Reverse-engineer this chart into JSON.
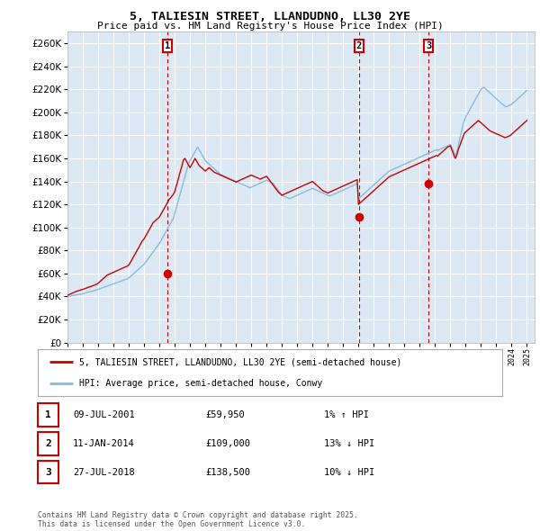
{
  "title": "5, TALIESIN STREET, LLANDUDNO, LL30 2YE",
  "subtitle": "Price paid vs. HM Land Registry's House Price Index (HPI)",
  "ylabel_ticks": [
    0,
    20000,
    40000,
    60000,
    80000,
    100000,
    120000,
    140000,
    160000,
    180000,
    200000,
    220000,
    240000,
    260000
  ],
  "ylim": [
    0,
    270000
  ],
  "xlim_start": 1995.0,
  "xlim_end": 2025.5,
  "fig_bg_color": "#ffffff",
  "plot_bg_color": "#dce9f5",
  "grid_color": "#ffffff",
  "red_line_color": "#cc0000",
  "blue_line_color": "#88bbdd",
  "sale_marker_color": "#cc0000",
  "vline_color": "#cc0000",
  "transactions": [
    {
      "label": "1",
      "date_num": 2001.52,
      "price": 59950
    },
    {
      "label": "2",
      "date_num": 2014.03,
      "price": 109000
    },
    {
      "label": "3",
      "date_num": 2018.57,
      "price": 138500
    }
  ],
  "legend_entries": [
    "5, TALIESIN STREET, LLANDUDNO, LL30 2YE (semi-detached house)",
    "HPI: Average price, semi-detached house, Conwy"
  ],
  "table_rows": [
    {
      "num": "1",
      "date": "09-JUL-2001",
      "price": "£59,950",
      "hpi": "1% ↑ HPI"
    },
    {
      "num": "2",
      "date": "11-JAN-2014",
      "price": "£109,000",
      "hpi": "13% ↓ HPI"
    },
    {
      "num": "3",
      "date": "27-JUL-2018",
      "price": "£138,500",
      "hpi": "10% ↓ HPI"
    }
  ],
  "footnote": "Contains HM Land Registry data © Crown copyright and database right 2025.\nThis data is licensed under the Open Government Licence v3.0.",
  "hpi_years": [
    1995.0,
    1995.08,
    1995.17,
    1995.25,
    1995.33,
    1995.42,
    1995.5,
    1995.58,
    1995.67,
    1995.75,
    1995.83,
    1995.92,
    1996.0,
    1996.08,
    1996.17,
    1996.25,
    1996.33,
    1996.42,
    1996.5,
    1996.58,
    1996.67,
    1996.75,
    1996.83,
    1996.92,
    1997.0,
    1997.08,
    1997.17,
    1997.25,
    1997.33,
    1997.42,
    1997.5,
    1997.58,
    1997.67,
    1997.75,
    1997.83,
    1997.92,
    1998.0,
    1998.08,
    1998.17,
    1998.25,
    1998.33,
    1998.42,
    1998.5,
    1998.58,
    1998.67,
    1998.75,
    1998.83,
    1998.92,
    1999.0,
    1999.08,
    1999.17,
    1999.25,
    1999.33,
    1999.42,
    1999.5,
    1999.58,
    1999.67,
    1999.75,
    1999.83,
    1999.92,
    2000.0,
    2000.08,
    2000.17,
    2000.25,
    2000.33,
    2000.42,
    2000.5,
    2000.58,
    2000.67,
    2000.75,
    2000.83,
    2000.92,
    2001.0,
    2001.08,
    2001.17,
    2001.25,
    2001.33,
    2001.42,
    2001.5,
    2001.58,
    2001.67,
    2001.75,
    2001.83,
    2001.92,
    2002.0,
    2002.08,
    2002.17,
    2002.25,
    2002.33,
    2002.42,
    2002.5,
    2002.58,
    2002.67,
    2002.75,
    2002.83,
    2002.92,
    2003.0,
    2003.08,
    2003.17,
    2003.25,
    2003.33,
    2003.42,
    2003.5,
    2003.58,
    2003.67,
    2003.75,
    2003.83,
    2003.92,
    2004.0,
    2004.08,
    2004.17,
    2004.25,
    2004.33,
    2004.42,
    2004.5,
    2004.58,
    2004.67,
    2004.75,
    2004.83,
    2004.92,
    2005.0,
    2005.08,
    2005.17,
    2005.25,
    2005.33,
    2005.42,
    2005.5,
    2005.58,
    2005.67,
    2005.75,
    2005.83,
    2005.92,
    2006.0,
    2006.08,
    2006.17,
    2006.25,
    2006.33,
    2006.42,
    2006.5,
    2006.58,
    2006.67,
    2006.75,
    2006.83,
    2006.92,
    2007.0,
    2007.08,
    2007.17,
    2007.25,
    2007.33,
    2007.42,
    2007.5,
    2007.58,
    2007.67,
    2007.75,
    2007.83,
    2007.92,
    2008.0,
    2008.08,
    2008.17,
    2008.25,
    2008.33,
    2008.42,
    2008.5,
    2008.58,
    2008.67,
    2008.75,
    2008.83,
    2008.92,
    2009.0,
    2009.08,
    2009.17,
    2009.25,
    2009.33,
    2009.42,
    2009.5,
    2009.58,
    2009.67,
    2009.75,
    2009.83,
    2009.92,
    2010.0,
    2010.08,
    2010.17,
    2010.25,
    2010.33,
    2010.42,
    2010.5,
    2010.58,
    2010.67,
    2010.75,
    2010.83,
    2010.92,
    2011.0,
    2011.08,
    2011.17,
    2011.25,
    2011.33,
    2011.42,
    2011.5,
    2011.58,
    2011.67,
    2011.75,
    2011.83,
    2011.92,
    2012.0,
    2012.08,
    2012.17,
    2012.25,
    2012.33,
    2012.42,
    2012.5,
    2012.58,
    2012.67,
    2012.75,
    2012.83,
    2012.92,
    2013.0,
    2013.08,
    2013.17,
    2013.25,
    2013.33,
    2013.42,
    2013.5,
    2013.58,
    2013.67,
    2013.75,
    2013.83,
    2013.92,
    2014.0,
    2014.08,
    2014.17,
    2014.25,
    2014.33,
    2014.42,
    2014.5,
    2014.58,
    2014.67,
    2014.75,
    2014.83,
    2014.92,
    2015.0,
    2015.08,
    2015.17,
    2015.25,
    2015.33,
    2015.42,
    2015.5,
    2015.58,
    2015.67,
    2015.75,
    2015.83,
    2015.92,
    2016.0,
    2016.08,
    2016.17,
    2016.25,
    2016.33,
    2016.42,
    2016.5,
    2016.58,
    2016.67,
    2016.75,
    2016.83,
    2016.92,
    2017.0,
    2017.08,
    2017.17,
    2017.25,
    2017.33,
    2017.42,
    2017.5,
    2017.58,
    2017.67,
    2017.75,
    2017.83,
    2017.92,
    2018.0,
    2018.08,
    2018.17,
    2018.25,
    2018.33,
    2018.42,
    2018.5,
    2018.58,
    2018.67,
    2018.75,
    2018.83,
    2018.92,
    2019.0,
    2019.08,
    2019.17,
    2019.25,
    2019.33,
    2019.42,
    2019.5,
    2019.58,
    2019.67,
    2019.75,
    2019.83,
    2019.92,
    2020.0,
    2020.08,
    2020.17,
    2020.25,
    2020.33,
    2020.42,
    2020.5,
    2020.58,
    2020.67,
    2020.75,
    2020.83,
    2020.92,
    2021.0,
    2021.08,
    2021.17,
    2021.25,
    2021.33,
    2021.42,
    2021.5,
    2021.58,
    2021.67,
    2021.75,
    2021.83,
    2021.92,
    2022.0,
    2022.08,
    2022.17,
    2022.25,
    2022.33,
    2022.42,
    2022.5,
    2022.58,
    2022.67,
    2022.75,
    2022.83,
    2022.92,
    2023.0,
    2023.08,
    2023.17,
    2023.25,
    2023.33,
    2023.42,
    2023.5,
    2023.58,
    2023.67,
    2023.75,
    2023.83,
    2023.92,
    2024.0,
    2024.08,
    2024.17,
    2024.25,
    2024.33,
    2024.42,
    2024.5,
    2024.58,
    2024.67,
    2024.75,
    2024.83,
    2024.92,
    2025.0
  ],
  "hpi_values": [
    40000,
    40200,
    40400,
    40600,
    40800,
    41000,
    41200,
    41400,
    41600,
    41800,
    42000,
    42200,
    42500,
    42800,
    43100,
    43400,
    43700,
    44000,
    44300,
    44600,
    44900,
    45200,
    45500,
    45800,
    46200,
    46600,
    47000,
    47400,
    47800,
    48200,
    48600,
    49000,
    49400,
    49800,
    50200,
    50600,
    51000,
    51400,
    51800,
    52200,
    52600,
    53000,
    53400,
    53800,
    54200,
    54600,
    55000,
    55400,
    56000,
    57000,
    58000,
    59000,
    60000,
    61000,
    62000,
    63000,
    64000,
    65000,
    66000,
    67000,
    68000,
    69500,
    71000,
    72500,
    74000,
    75500,
    77000,
    78500,
    80000,
    81500,
    83000,
    84500,
    86000,
    88000,
    90000,
    92000,
    94000,
    96000,
    98000,
    100000,
    102000,
    104000,
    106000,
    108000,
    112000,
    116000,
    120000,
    124000,
    128000,
    132000,
    136000,
    140000,
    144000,
    148000,
    152000,
    156000,
    158000,
    160000,
    162000,
    164000,
    166000,
    168000,
    170000,
    168000,
    166000,
    164000,
    162000,
    160000,
    158000,
    157000,
    156000,
    155000,
    154000,
    153000,
    152000,
    151000,
    150000,
    149000,
    148000,
    147000,
    146000,
    145500,
    145000,
    144500,
    144000,
    143500,
    143000,
    142500,
    142000,
    141500,
    141000,
    140500,
    140000,
    139500,
    139000,
    138500,
    138000,
    137500,
    137000,
    136500,
    136000,
    135500,
    135000,
    134500,
    135000,
    135500,
    136000,
    136500,
    137000,
    137500,
    138000,
    138500,
    139000,
    139500,
    140000,
    140500,
    141000,
    140500,
    140000,
    139500,
    139000,
    138500,
    137000,
    135500,
    134000,
    132500,
    131000,
    129500,
    128000,
    127500,
    127000,
    126500,
    126000,
    125500,
    125000,
    125500,
    126000,
    126500,
    127000,
    127500,
    128000,
    128500,
    129000,
    129500,
    130000,
    130500,
    131000,
    131500,
    132000,
    132500,
    133000,
    133500,
    134000,
    133500,
    133000,
    132500,
    132000,
    131500,
    131000,
    130500,
    130000,
    129500,
    129000,
    128500,
    128000,
    127500,
    127500,
    128000,
    128500,
    129000,
    129500,
    130000,
    130500,
    131000,
    131500,
    132000,
    132500,
    133000,
    133500,
    134000,
    134500,
    135000,
    135500,
    136000,
    136500,
    137000,
    137500,
    138000,
    125000,
    126000,
    127000,
    128000,
    129000,
    130000,
    131000,
    132000,
    133000,
    134000,
    135000,
    136000,
    137000,
    138000,
    139000,
    140000,
    141000,
    142000,
    143000,
    144000,
    145000,
    146000,
    147000,
    148000,
    149000,
    149500,
    150000,
    150500,
    151000,
    151500,
    152000,
    152500,
    153000,
    153500,
    154000,
    154500,
    155000,
    155500,
    156000,
    156500,
    157000,
    157500,
    158000,
    158500,
    159000,
    159500,
    160000,
    160500,
    161000,
    161500,
    162000,
    162500,
    163000,
    163500,
    164000,
    164500,
    165000,
    165500,
    166000,
    166500,
    167000,
    167500,
    167000,
    167500,
    168000,
    168500,
    169000,
    169500,
    170000,
    170500,
    171000,
    171500,
    172000,
    170000,
    168000,
    165000,
    162000,
    165000,
    170000,
    175000,
    180000,
    185000,
    190000,
    193000,
    196000,
    198000,
    200000,
    202000,
    204000,
    206000,
    208000,
    210000,
    212000,
    214000,
    216000,
    218000,
    220000,
    221000,
    222000,
    221000,
    220000,
    219000,
    218000,
    217000,
    216000,
    215000,
    214000,
    213000,
    212000,
    211000,
    210000,
    209000,
    208000,
    207000,
    206000,
    205000,
    205000,
    205500,
    206000,
    206500,
    207000,
    208000,
    209000,
    210000,
    211000,
    212000,
    213000,
    214000,
    215000,
    216000,
    217000,
    218000,
    219000,
    220000,
    221000,
    222000,
    223000,
    224000,
    225000,
    226000,
    227000,
    226000,
    225000,
    224000,
    223000
  ],
  "pp_years": [
    1995.0,
    1995.08,
    1995.17,
    1995.25,
    1995.33,
    1995.42,
    1995.5,
    1995.58,
    1995.67,
    1995.75,
    1995.83,
    1995.92,
    1996.0,
    1996.08,
    1996.17,
    1996.25,
    1996.33,
    1996.42,
    1996.5,
    1996.58,
    1996.67,
    1996.75,
    1996.83,
    1996.92,
    1997.0,
    1997.08,
    1997.17,
    1997.25,
    1997.33,
    1997.42,
    1997.5,
    1997.58,
    1997.67,
    1997.75,
    1997.83,
    1997.92,
    1998.0,
    1998.08,
    1998.17,
    1998.25,
    1998.33,
    1998.42,
    1998.5,
    1998.58,
    1998.67,
    1998.75,
    1998.83,
    1998.92,
    1999.0,
    1999.08,
    1999.17,
    1999.25,
    1999.33,
    1999.42,
    1999.5,
    1999.58,
    1999.67,
    1999.75,
    1999.83,
    1999.92,
    2000.0,
    2000.08,
    2000.17,
    2000.25,
    2000.33,
    2000.42,
    2000.5,
    2000.58,
    2000.67,
    2000.75,
    2000.83,
    2000.92,
    2001.0,
    2001.08,
    2001.17,
    2001.25,
    2001.33,
    2001.42,
    2001.5,
    2001.58,
    2001.67,
    2001.75,
    2001.83,
    2001.92,
    2002.0,
    2002.08,
    2002.17,
    2002.25,
    2002.33,
    2002.42,
    2002.5,
    2002.58,
    2002.67,
    2002.75,
    2002.83,
    2002.92,
    2003.0,
    2003.08,
    2003.17,
    2003.25,
    2003.33,
    2003.42,
    2003.5,
    2003.58,
    2003.67,
    2003.75,
    2003.83,
    2003.92,
    2004.0,
    2004.08,
    2004.17,
    2004.25,
    2004.33,
    2004.42,
    2004.5,
    2004.58,
    2004.67,
    2004.75,
    2004.83,
    2004.92,
    2005.0,
    2005.08,
    2005.17,
    2005.25,
    2005.33,
    2005.42,
    2005.5,
    2005.58,
    2005.67,
    2005.75,
    2005.83,
    2005.92,
    2006.0,
    2006.08,
    2006.17,
    2006.25,
    2006.33,
    2006.42,
    2006.5,
    2006.58,
    2006.67,
    2006.75,
    2006.83,
    2006.92,
    2007.0,
    2007.08,
    2007.17,
    2007.25,
    2007.33,
    2007.42,
    2007.5,
    2007.58,
    2007.67,
    2007.75,
    2007.83,
    2007.92,
    2008.0,
    2008.08,
    2008.17,
    2008.25,
    2008.33,
    2008.42,
    2008.5,
    2008.58,
    2008.67,
    2008.75,
    2008.83,
    2008.92,
    2009.0,
    2009.08,
    2009.17,
    2009.25,
    2009.33,
    2009.42,
    2009.5,
    2009.58,
    2009.67,
    2009.75,
    2009.83,
    2009.92,
    2010.0,
    2010.08,
    2010.17,
    2010.25,
    2010.33,
    2010.42,
    2010.5,
    2010.58,
    2010.67,
    2010.75,
    2010.83,
    2010.92,
    2011.0,
    2011.08,
    2011.17,
    2011.25,
    2011.33,
    2011.42,
    2011.5,
    2011.58,
    2011.67,
    2011.75,
    2011.83,
    2011.92,
    2012.0,
    2012.08,
    2012.17,
    2012.25,
    2012.33,
    2012.42,
    2012.5,
    2012.58,
    2012.67,
    2012.75,
    2012.83,
    2012.92,
    2013.0,
    2013.08,
    2013.17,
    2013.25,
    2013.33,
    2013.42,
    2013.5,
    2013.58,
    2013.67,
    2013.75,
    2013.83,
    2013.92,
    2014.0,
    2014.08,
    2014.17,
    2014.25,
    2014.33,
    2014.42,
    2014.5,
    2014.58,
    2014.67,
    2014.75,
    2014.83,
    2014.92,
    2015.0,
    2015.08,
    2015.17,
    2015.25,
    2015.33,
    2015.42,
    2015.5,
    2015.58,
    2015.67,
    2015.75,
    2015.83,
    2015.92,
    2016.0,
    2016.08,
    2016.17,
    2016.25,
    2016.33,
    2016.42,
    2016.5,
    2016.58,
    2016.67,
    2016.75,
    2016.83,
    2016.92,
    2017.0,
    2017.08,
    2017.17,
    2017.25,
    2017.33,
    2017.42,
    2017.5,
    2017.58,
    2017.67,
    2017.75,
    2017.83,
    2017.92,
    2018.0,
    2018.08,
    2018.17,
    2018.25,
    2018.33,
    2018.42,
    2018.5,
    2018.58,
    2018.67,
    2018.75,
    2018.83,
    2018.92,
    2019.0,
    2019.08,
    2019.17,
    2019.25,
    2019.33,
    2019.42,
    2019.5,
    2019.58,
    2019.67,
    2019.75,
    2019.83,
    2019.92,
    2020.0,
    2020.08,
    2020.17,
    2020.25,
    2020.33,
    2020.42,
    2020.5,
    2020.58,
    2020.67,
    2020.75,
    2020.83,
    2020.92,
    2021.0,
    2021.08,
    2021.17,
    2021.25,
    2021.33,
    2021.42,
    2021.5,
    2021.58,
    2021.67,
    2021.75,
    2021.83,
    2021.92,
    2022.0,
    2022.08,
    2022.17,
    2022.25,
    2022.33,
    2022.42,
    2022.5,
    2022.58,
    2022.67,
    2022.75,
    2022.83,
    2022.92,
    2023.0,
    2023.08,
    2023.17,
    2023.25,
    2023.33,
    2023.42,
    2023.5,
    2023.58,
    2023.67,
    2023.75,
    2023.83,
    2023.92,
    2024.0,
    2024.08,
    2024.17,
    2024.25,
    2024.33,
    2024.42,
    2024.5,
    2024.58,
    2024.67,
    2024.75,
    2024.83,
    2024.92,
    2025.0
  ],
  "pp_values": [
    41000,
    41500,
    42000,
    42500,
    43000,
    43500,
    44000,
    44500,
    44800,
    45200,
    45500,
    45800,
    46200,
    46600,
    47000,
    47400,
    47800,
    48200,
    48600,
    49000,
    49400,
    49800,
    50300,
    50800,
    51500,
    52500,
    53500,
    54500,
    55500,
    56500,
    57500,
    58500,
    59000,
    59500,
    60000,
    60500,
    61000,
    61500,
    62000,
    62500,
    63000,
    63500,
    64000,
    64500,
    65000,
    65500,
    66000,
    66500,
    67500,
    69000,
    71000,
    73000,
    75000,
    77000,
    79000,
    81000,
    83000,
    85000,
    87000,
    89000,
    90000,
    92000,
    94000,
    96000,
    98000,
    100000,
    102000,
    104000,
    105000,
    106000,
    107000,
    108000,
    109000,
    111000,
    113000,
    115000,
    117000,
    119000,
    121000,
    123000,
    125000,
    126000,
    127500,
    129000,
    131000,
    135000,
    139000,
    143000,
    147000,
    151000,
    155000,
    159000,
    160000,
    158000,
    156000,
    154000,
    152000,
    154000,
    156000,
    158000,
    160000,
    158000,
    156000,
    154000,
    153000,
    152000,
    151000,
    150000,
    149000,
    150000,
    151000,
    152000,
    151000,
    150000,
    149000,
    148000,
    147500,
    147000,
    146500,
    146000,
    145500,
    145000,
    144500,
    144000,
    143500,
    143000,
    142500,
    142000,
    141500,
    141000,
    140500,
    140000,
    139500,
    140000,
    140500,
    141000,
    141500,
    142000,
    142500,
    143000,
    143500,
    144000,
    144500,
    145000,
    145500,
    145000,
    144500,
    144000,
    143500,
    143000,
    142500,
    142000,
    142500,
    143000,
    143500,
    144000,
    144500,
    143000,
    141500,
    140000,
    138500,
    137000,
    135500,
    134000,
    132500,
    131000,
    130000,
    129000,
    128000,
    128500,
    129000,
    129500,
    130000,
    130500,
    131000,
    131500,
    132000,
    132500,
    133000,
    133500,
    134000,
    134500,
    135000,
    135500,
    136000,
    136500,
    137000,
    137500,
    138000,
    138500,
    139000,
    139500,
    140000,
    139000,
    138000,
    137000,
    136000,
    135000,
    134000,
    133000,
    132000,
    131500,
    131000,
    130500,
    130000,
    130500,
    131000,
    131500,
    132000,
    132500,
    133000,
    133500,
    134000,
    134500,
    135000,
    135500,
    136000,
    136500,
    137000,
    137500,
    138000,
    138500,
    139000,
    139500,
    140000,
    140500,
    141000,
    141500,
    120000,
    121000,
    122000,
    123000,
    124000,
    125000,
    126000,
    127000,
    128000,
    129000,
    130000,
    131000,
    132000,
    133000,
    134000,
    135000,
    136000,
    137000,
    138000,
    139000,
    140000,
    141000,
    142000,
    143000,
    144000,
    144500,
    145000,
    145500,
    146000,
    146500,
    147000,
    147500,
    148000,
    148500,
    149000,
    149500,
    150000,
    150500,
    151000,
    151500,
    152000,
    152500,
    153000,
    153500,
    154000,
    154500,
    155000,
    155500,
    156000,
    156500,
    157000,
    157500,
    158000,
    158500,
    159000,
    159500,
    160000,
    160500,
    161000,
    161500,
    162000,
    162500,
    162000,
    163000,
    164000,
    165000,
    166000,
    167000,
    168000,
    169000,
    170000,
    170500,
    171000,
    168000,
    165000,
    162000,
    160000,
    163000,
    167000,
    170000,
    173000,
    176000,
    179000,
    182000,
    183000,
    184000,
    185000,
    186000,
    187000,
    188000,
    189000,
    190000,
    191000,
    192000,
    193000,
    192000,
    191000,
    190000,
    189000,
    188000,
    187000,
    186000,
    185000,
    184000,
    183500,
    183000,
    182500,
    182000,
    181500,
    181000,
    180500,
    180000,
    179500,
    179000,
    178500,
    178000,
    178500,
    179000,
    179500,
    180000,
    181000,
    182000,
    183000,
    184000,
    185000,
    186000,
    187000,
    188000,
    189000,
    190000,
    191000,
    192000,
    193000,
    194000,
    194500,
    195000,
    195500,
    196000,
    196500,
    197000,
    197500,
    196000,
    194500,
    193000,
    192000
  ]
}
